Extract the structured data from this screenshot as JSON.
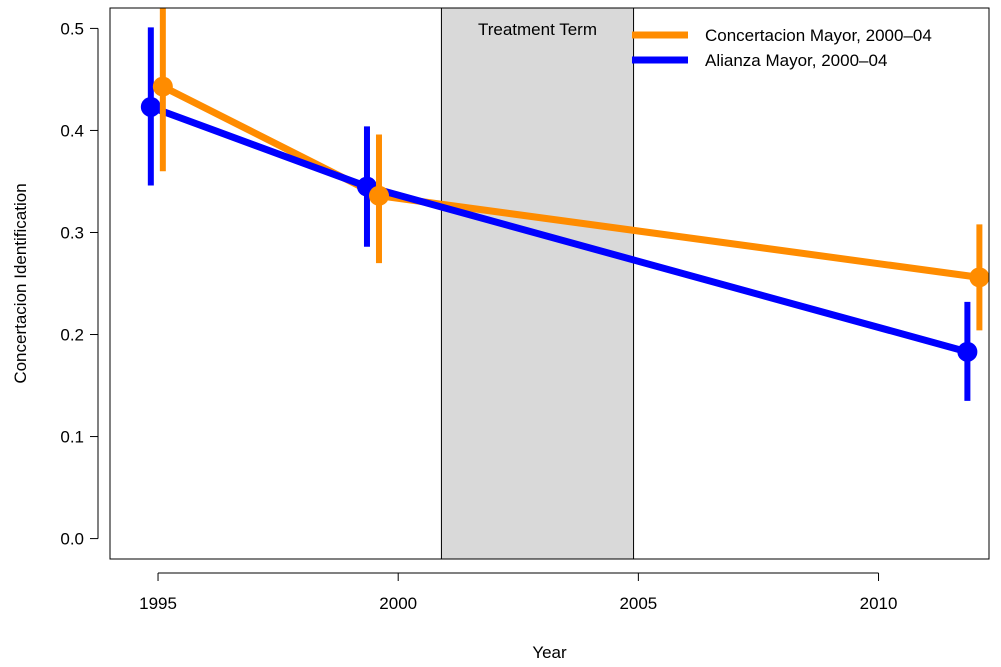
{
  "chart_data": {
    "type": "line",
    "xlabel": "Year",
    "ylabel": "Concertacion Identification",
    "xlim": [
      1994,
      2012.3
    ],
    "ylim": [
      -0.02,
      0.52
    ],
    "x_ticks": [
      1995,
      2000,
      2005,
      2010
    ],
    "x_tick_labels": [
      "1995",
      "2000",
      "2005",
      "2010"
    ],
    "y_ticks": [
      0.0,
      0.1,
      0.2,
      0.3,
      0.4,
      0.5
    ],
    "y_tick_labels": [
      "0.0",
      "0.1",
      "0.2",
      "0.3",
      "0.4",
      "0.5"
    ],
    "grid": false,
    "legend_position": "top-right",
    "annotation": {
      "label": "Treatment Term",
      "x_start": 2000.9,
      "x_end": 2004.9,
      "color": "#d9d9d9"
    },
    "series": [
      {
        "name": "Concertacion Mayor, 2000–04",
        "color": "#ff8c00",
        "x": [
          1995.1,
          1999.6,
          2012.1
        ],
        "y": [
          0.443,
          0.336,
          0.256
        ],
        "lower": [
          0.36,
          0.27,
          0.204
        ],
        "upper": [
          0.525,
          0.396,
          0.308
        ]
      },
      {
        "name": "Alianza Mayor, 2000–04",
        "color": "#0000ff",
        "x": [
          1994.85,
          1999.35,
          2011.85
        ],
        "y": [
          0.423,
          0.345,
          0.183
        ],
        "lower": [
          0.346,
          0.286,
          0.135
        ],
        "upper": [
          0.501,
          0.404,
          0.232
        ]
      }
    ]
  }
}
